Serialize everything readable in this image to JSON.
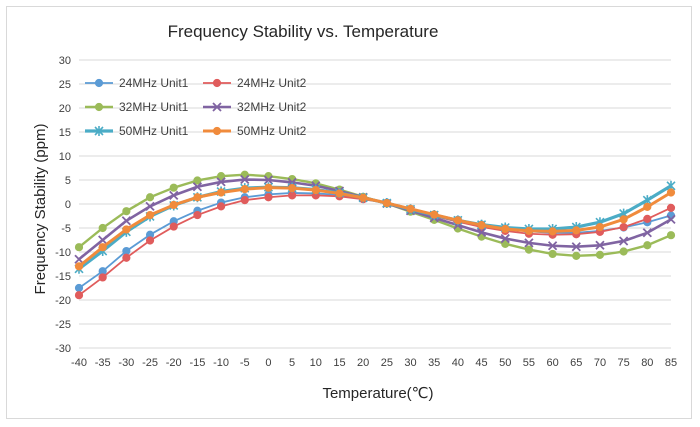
{
  "chart_data": {
    "type": "line",
    "title": "Frequency Stability vs. Temperature",
    "xlabel": "Temperature(℃)",
    "ylabel": "Frequency Stability (ppm)",
    "x": [
      -40,
      -35,
      -30,
      -25,
      -20,
      -15,
      -10,
      -5,
      0,
      5,
      10,
      15,
      20,
      25,
      30,
      35,
      40,
      45,
      50,
      55,
      60,
      65,
      70,
      75,
      80,
      85
    ],
    "ylim": [
      -30,
      30
    ],
    "yticks": [
      30,
      25,
      20,
      15,
      10,
      5,
      0,
      -5,
      -10,
      -15,
      -20,
      -25,
      -30
    ],
    "grid": "horizontal",
    "legend_position": "top-left",
    "series": [
      {
        "name": "24MHz Unit1",
        "color": "#5b9bd5",
        "marker": "circle",
        "values": [
          -17.5,
          -14.0,
          -9.8,
          -6.4,
          -3.6,
          -1.4,
          0.3,
          1.4,
          2.0,
          2.3,
          2.2,
          1.9,
          1.2,
          0.3,
          -1.0,
          -2.2,
          -3.3,
          -4.3,
          -5.1,
          -5.7,
          -6.0,
          -6.0,
          -5.6,
          -4.9,
          -3.8,
          -2.4
        ]
      },
      {
        "name": "24MHz Unit2",
        "color": "#e05c5c",
        "marker": "circle",
        "values": [
          -19.0,
          -15.3,
          -11.2,
          -7.6,
          -4.7,
          -2.3,
          -0.5,
          0.8,
          1.4,
          1.8,
          1.8,
          1.6,
          1.0,
          0.2,
          -1.1,
          -2.5,
          -3.7,
          -4.8,
          -5.6,
          -6.2,
          -6.4,
          -6.3,
          -5.8,
          -4.8,
          -3.1,
          -0.8
        ]
      },
      {
        "name": "32MHz Unit1",
        "color": "#9bbb59",
        "marker": "circle",
        "values": [
          -9.0,
          -5.0,
          -1.5,
          1.4,
          3.4,
          4.9,
          5.8,
          6.1,
          5.8,
          5.2,
          4.3,
          3.0,
          1.5,
          0.1,
          -1.6,
          -3.3,
          -5.1,
          -6.8,
          -8.3,
          -9.5,
          -10.4,
          -10.8,
          -10.6,
          -9.9,
          -8.6,
          -6.5
        ]
      },
      {
        "name": "32MHz Unit2",
        "color": "#8064a2",
        "marker": "x",
        "values": [
          -11.5,
          -7.5,
          -3.5,
          -0.5,
          1.8,
          3.6,
          4.6,
          5.1,
          5.0,
          4.5,
          3.8,
          2.7,
          1.4,
          0.1,
          -1.4,
          -2.9,
          -4.4,
          -5.9,
          -7.2,
          -8.1,
          -8.7,
          -8.9,
          -8.6,
          -7.7,
          -6.0,
          -3.2
        ]
      },
      {
        "name": "50MHz Unit1",
        "color": "#4bacc6",
        "marker": "star",
        "values": [
          -13.5,
          -9.8,
          -5.8,
          -2.6,
          -0.3,
          1.4,
          2.6,
          3.3,
          3.5,
          3.4,
          3.0,
          2.3,
          1.3,
          0.2,
          -1.1,
          -2.3,
          -3.4,
          -4.3,
          -4.9,
          -5.2,
          -5.2,
          -4.8,
          -3.8,
          -2.0,
          0.8,
          3.8
        ]
      },
      {
        "name": "50MHz Unit2",
        "color": "#f08b3c",
        "marker": "circle",
        "values": [
          -13.0,
          -9.0,
          -5.3,
          -2.3,
          -0.2,
          1.4,
          2.4,
          3.1,
          3.4,
          3.3,
          2.9,
          2.2,
          1.3,
          0.2,
          -1.0,
          -2.2,
          -3.4,
          -4.4,
          -5.2,
          -5.6,
          -5.7,
          -5.5,
          -4.8,
          -3.2,
          -0.6,
          2.4
        ]
      }
    ]
  }
}
